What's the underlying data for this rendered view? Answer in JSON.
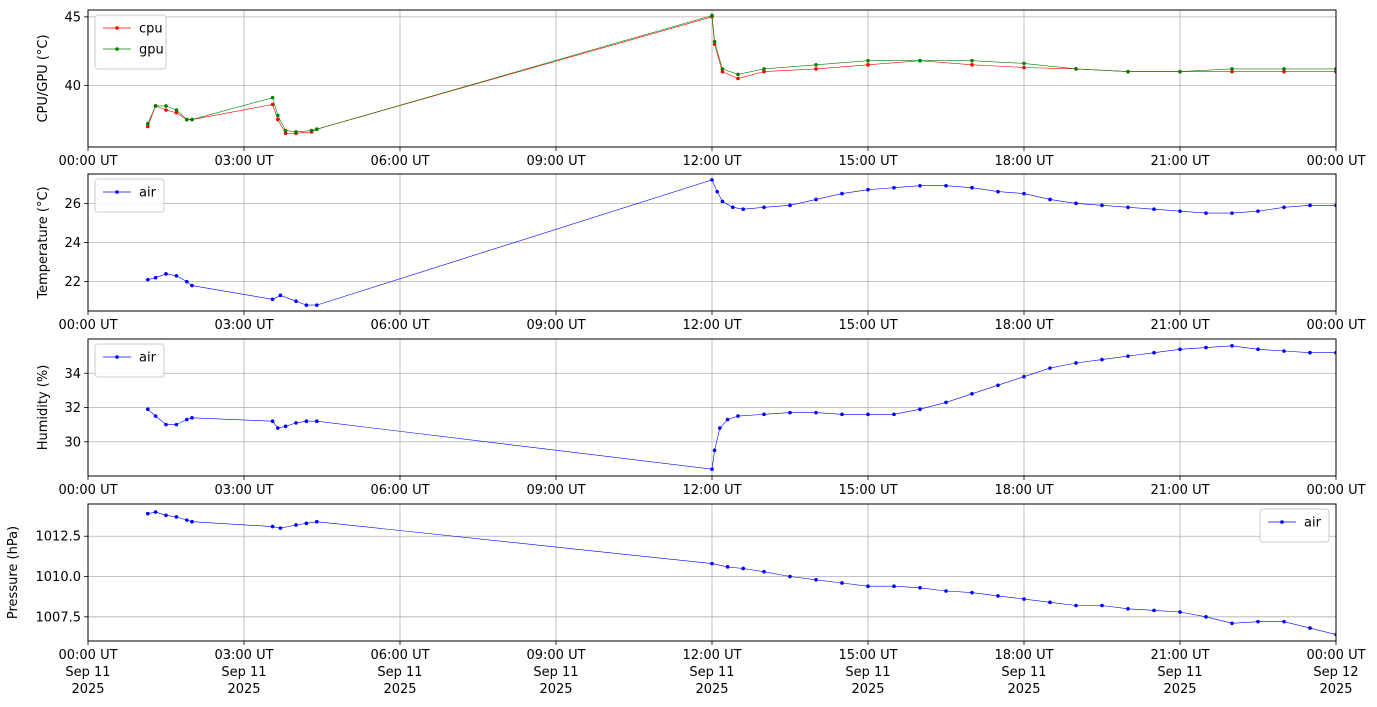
{
  "chart_data": [
    {
      "type": "line",
      "ylabel": "CPU/GPU (°C)",
      "ylim": [
        35.5,
        45.5
      ],
      "yticks": [
        40,
        45
      ],
      "xlim_hours": [
        0,
        24
      ],
      "xticks_hours": [
        0,
        3,
        6,
        9,
        12,
        15,
        18,
        21,
        24
      ],
      "xtick_labels": [
        "00:00 UT",
        "03:00 UT",
        "06:00 UT",
        "09:00 UT",
        "12:00 UT",
        "15:00 UT",
        "18:00 UT",
        "21:00 UT",
        "00:00 UT"
      ],
      "grid": true,
      "legend_position": "upper-left",
      "series": [
        {
          "name": "cpu",
          "color": "#ff0000",
          "x": [
            1.15,
            1.3,
            1.5,
            1.7,
            1.9,
            2.0,
            3.55,
            3.65,
            3.8,
            4.0,
            4.3,
            4.4,
            12.0,
            12.05,
            12.2,
            12.5,
            13.0,
            14.0,
            15.0,
            16.0,
            17.0,
            18.0,
            19.0,
            20.0,
            21.0,
            22.0,
            23.0,
            24.0
          ],
          "y": [
            37.0,
            38.5,
            38.2,
            38.0,
            37.5,
            37.5,
            38.6,
            37.5,
            36.5,
            36.5,
            36.6,
            36.8,
            45.0,
            43.0,
            41.0,
            40.5,
            41.0,
            41.2,
            41.5,
            41.8,
            41.5,
            41.3,
            41.2,
            41.0,
            41.0,
            41.0,
            41.0,
            41.0
          ]
        },
        {
          "name": "gpu",
          "color": "#008000",
          "x": [
            1.15,
            1.3,
            1.5,
            1.7,
            1.9,
            2.0,
            3.55,
            3.65,
            3.8,
            4.0,
            4.3,
            4.4,
            12.0,
            12.05,
            12.2,
            12.5,
            13.0,
            14.0,
            15.0,
            16.0,
            17.0,
            18.0,
            19.0,
            20.0,
            21.0,
            22.0,
            23.0,
            24.0
          ],
          "y": [
            37.2,
            38.5,
            38.5,
            38.2,
            37.5,
            37.5,
            39.1,
            37.8,
            36.7,
            36.6,
            36.7,
            36.8,
            45.1,
            43.2,
            41.2,
            40.8,
            41.2,
            41.5,
            41.8,
            41.8,
            41.8,
            41.6,
            41.2,
            41.0,
            41.0,
            41.2,
            41.2,
            41.2
          ]
        }
      ]
    },
    {
      "type": "line",
      "ylabel": "Temperature (°C)",
      "ylim": [
        20.5,
        27.5
      ],
      "yticks": [
        22,
        24,
        26
      ],
      "xlim_hours": [
        0,
        24
      ],
      "xticks_hours": [
        0,
        3,
        6,
        9,
        12,
        15,
        18,
        21,
        24
      ],
      "xtick_labels": [
        "00:00 UT",
        "03:00 UT",
        "06:00 UT",
        "09:00 UT",
        "12:00 UT",
        "15:00 UT",
        "18:00 UT",
        "21:00 UT",
        "00:00 UT"
      ],
      "grid": true,
      "legend_position": "upper-left",
      "series": [
        {
          "name": "air",
          "color": "#0000ff",
          "x": [
            1.15,
            1.3,
            1.5,
            1.7,
            1.9,
            2.0,
            3.55,
            3.7,
            4.0,
            4.2,
            4.4,
            12.0,
            12.1,
            12.2,
            12.4,
            12.6,
            13.0,
            13.5,
            14.0,
            14.5,
            15.0,
            15.5,
            16.0,
            16.5,
            17.0,
            17.5,
            18.0,
            18.5,
            19.0,
            19.5,
            20.0,
            20.5,
            21.0,
            21.5,
            22.0,
            22.5,
            23.0,
            23.5,
            24.0
          ],
          "y": [
            22.1,
            22.2,
            22.4,
            22.3,
            22.0,
            21.8,
            21.1,
            21.3,
            21.0,
            20.8,
            20.8,
            27.2,
            26.6,
            26.1,
            25.8,
            25.7,
            25.8,
            25.9,
            26.2,
            26.5,
            26.7,
            26.8,
            26.9,
            26.9,
            26.8,
            26.6,
            26.5,
            26.2,
            26.0,
            25.9,
            25.8,
            25.7,
            25.6,
            25.5,
            25.5,
            25.6,
            25.8,
            25.9,
            25.9
          ]
        }
      ]
    },
    {
      "type": "line",
      "ylabel": "Humidity (%)",
      "ylim": [
        28.0,
        36.0
      ],
      "yticks": [
        30,
        32,
        34
      ],
      "xlim_hours": [
        0,
        24
      ],
      "xticks_hours": [
        0,
        3,
        6,
        9,
        12,
        15,
        18,
        21,
        24
      ],
      "xtick_labels": [
        "00:00 UT",
        "03:00 UT",
        "06:00 UT",
        "09:00 UT",
        "12:00 UT",
        "15:00 UT",
        "18:00 UT",
        "21:00 UT",
        "00:00 UT"
      ],
      "grid": true,
      "legend_position": "upper-left",
      "series": [
        {
          "name": "air",
          "color": "#0000ff",
          "x": [
            1.15,
            1.3,
            1.5,
            1.7,
            1.9,
            2.0,
            3.55,
            3.65,
            3.8,
            4.0,
            4.2,
            4.4,
            12.0,
            12.05,
            12.15,
            12.3,
            12.5,
            13.0,
            13.5,
            14.0,
            14.5,
            15.0,
            15.5,
            16.0,
            16.5,
            17.0,
            17.5,
            18.0,
            18.5,
            19.0,
            19.5,
            20.0,
            20.5,
            21.0,
            21.5,
            22.0,
            22.5,
            23.0,
            23.5,
            24.0
          ],
          "y": [
            31.9,
            31.5,
            31.0,
            31.0,
            31.3,
            31.4,
            31.2,
            30.8,
            30.9,
            31.1,
            31.2,
            31.2,
            28.4,
            29.5,
            30.8,
            31.3,
            31.5,
            31.6,
            31.7,
            31.7,
            31.6,
            31.6,
            31.6,
            31.9,
            32.3,
            32.8,
            33.3,
            33.8,
            34.3,
            34.6,
            34.8,
            35.0,
            35.2,
            35.4,
            35.5,
            35.6,
            35.4,
            35.3,
            35.2,
            35.2
          ]
        }
      ]
    },
    {
      "type": "line",
      "ylabel": "Pressure (hPa)",
      "ylim": [
        1006.0,
        1014.5
      ],
      "yticks": [
        1007.5,
        1010.0,
        1012.5
      ],
      "ytick_labels": [
        "1007.5",
        "1010.0",
        "1012.5"
      ],
      "xlim_hours": [
        0,
        24
      ],
      "xticks_hours": [
        0,
        3,
        6,
        9,
        12,
        15,
        18,
        21,
        24
      ],
      "xtick_labels": [
        "00:00 UT",
        "03:00 UT",
        "06:00 UT",
        "09:00 UT",
        "12:00 UT",
        "15:00 UT",
        "18:00 UT",
        "21:00 UT",
        "00:00 UT"
      ],
      "xtick_date_labels": [
        "Sep 11",
        "Sep 11",
        "Sep 11",
        "Sep 11",
        "Sep 11",
        "Sep 11",
        "Sep 11",
        "Sep 11",
        "Sep 12"
      ],
      "xtick_year_labels": [
        "2025",
        "2025",
        "2025",
        "2025",
        "2025",
        "2025",
        "2025",
        "2025",
        "2025"
      ],
      "grid": true,
      "legend_position": "upper-right",
      "series": [
        {
          "name": "air",
          "color": "#0000ff",
          "x": [
            1.15,
            1.3,
            1.5,
            1.7,
            1.9,
            2.0,
            3.55,
            3.7,
            4.0,
            4.2,
            4.4,
            12.0,
            12.3,
            12.6,
            13.0,
            13.5,
            14.0,
            14.5,
            15.0,
            15.5,
            16.0,
            16.5,
            17.0,
            17.5,
            18.0,
            18.5,
            19.0,
            19.5,
            20.0,
            20.5,
            21.0,
            21.5,
            22.0,
            22.5,
            23.0,
            23.5,
            24.0
          ],
          "y": [
            1013.9,
            1014.0,
            1013.8,
            1013.7,
            1013.5,
            1013.4,
            1013.1,
            1013.0,
            1013.2,
            1013.3,
            1013.4,
            1010.8,
            1010.6,
            1010.5,
            1010.3,
            1010.0,
            1009.8,
            1009.6,
            1009.4,
            1009.4,
            1009.3,
            1009.1,
            1009.0,
            1008.8,
            1008.6,
            1008.4,
            1008.2,
            1008.2,
            1008.0,
            1007.9,
            1007.8,
            1007.5,
            1007.1,
            1007.2,
            1007.2,
            1006.8,
            1006.4
          ]
        }
      ]
    }
  ]
}
